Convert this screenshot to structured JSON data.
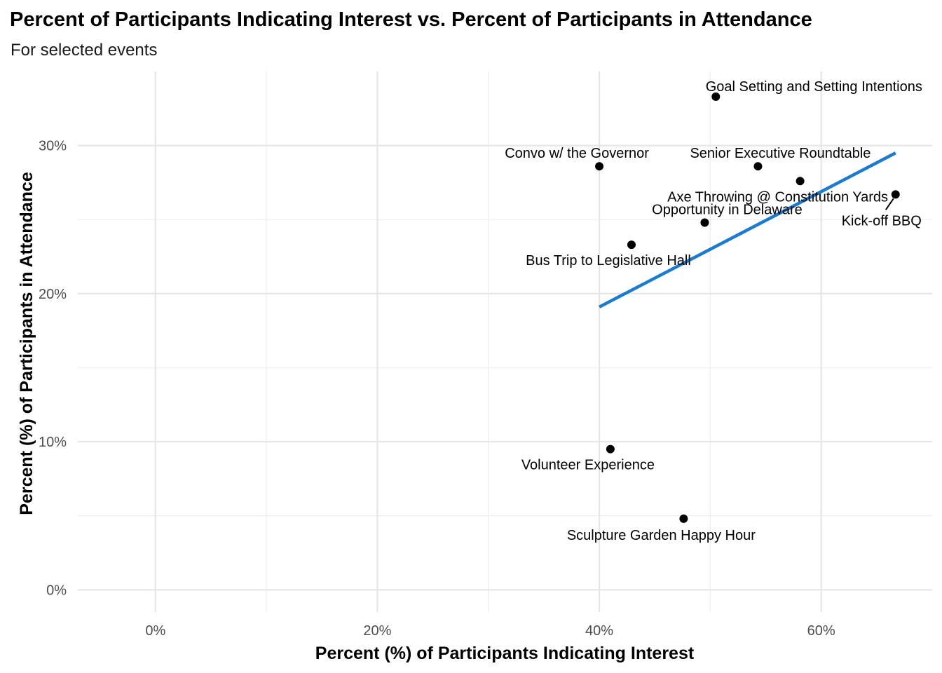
{
  "chart_data": {
    "type": "scatter",
    "title": "Percent of Participants Indicating Interest vs. Percent of Participants in Attendance",
    "subtitle": "For selected events",
    "xlabel": "Percent (%) of Participants Indicating Interest",
    "ylabel": "Percent (%) of Participants in Attendance",
    "xlim": [
      -7,
      70
    ],
    "ylim": [
      -1.5,
      35
    ],
    "x_ticks": [
      0,
      20,
      40,
      60
    ],
    "x_tick_labels": [
      "0%",
      "20%",
      "40%",
      "60%"
    ],
    "y_ticks": [
      0,
      10,
      20,
      30
    ],
    "y_tick_labels": [
      "0%",
      "10%",
      "20%",
      "30%"
    ],
    "grid": true,
    "points": [
      {
        "label": "Goal Setting and Setting Intentions",
        "x": 50.5,
        "y": 33.3
      },
      {
        "label": "Convo w/ the Governor",
        "x": 40.0,
        "y": 28.6
      },
      {
        "label": "Senior Executive Roundtable",
        "x": 54.3,
        "y": 28.6
      },
      {
        "label": "Axe Throwing @ Constitution Yards",
        "x": 58.1,
        "y": 27.6
      },
      {
        "label": "Kick-off BBQ",
        "x": 66.7,
        "y": 26.7
      },
      {
        "label": "Opportunity in Delaware",
        "x": 49.5,
        "y": 24.8
      },
      {
        "label": "Bus Trip to Legislative Hall",
        "x": 42.9,
        "y": 23.3
      },
      {
        "label": "Volunteer Experience",
        "x": 41.0,
        "y": 9.5
      },
      {
        "label": "Sculpture Garden Happy Hour",
        "x": 47.6,
        "y": 4.8
      }
    ],
    "trend_line": {
      "x": [
        40.0,
        66.7
      ],
      "y": [
        19.1,
        29.5
      ],
      "color": "#1b7bd0"
    },
    "point_color": "#000000"
  }
}
